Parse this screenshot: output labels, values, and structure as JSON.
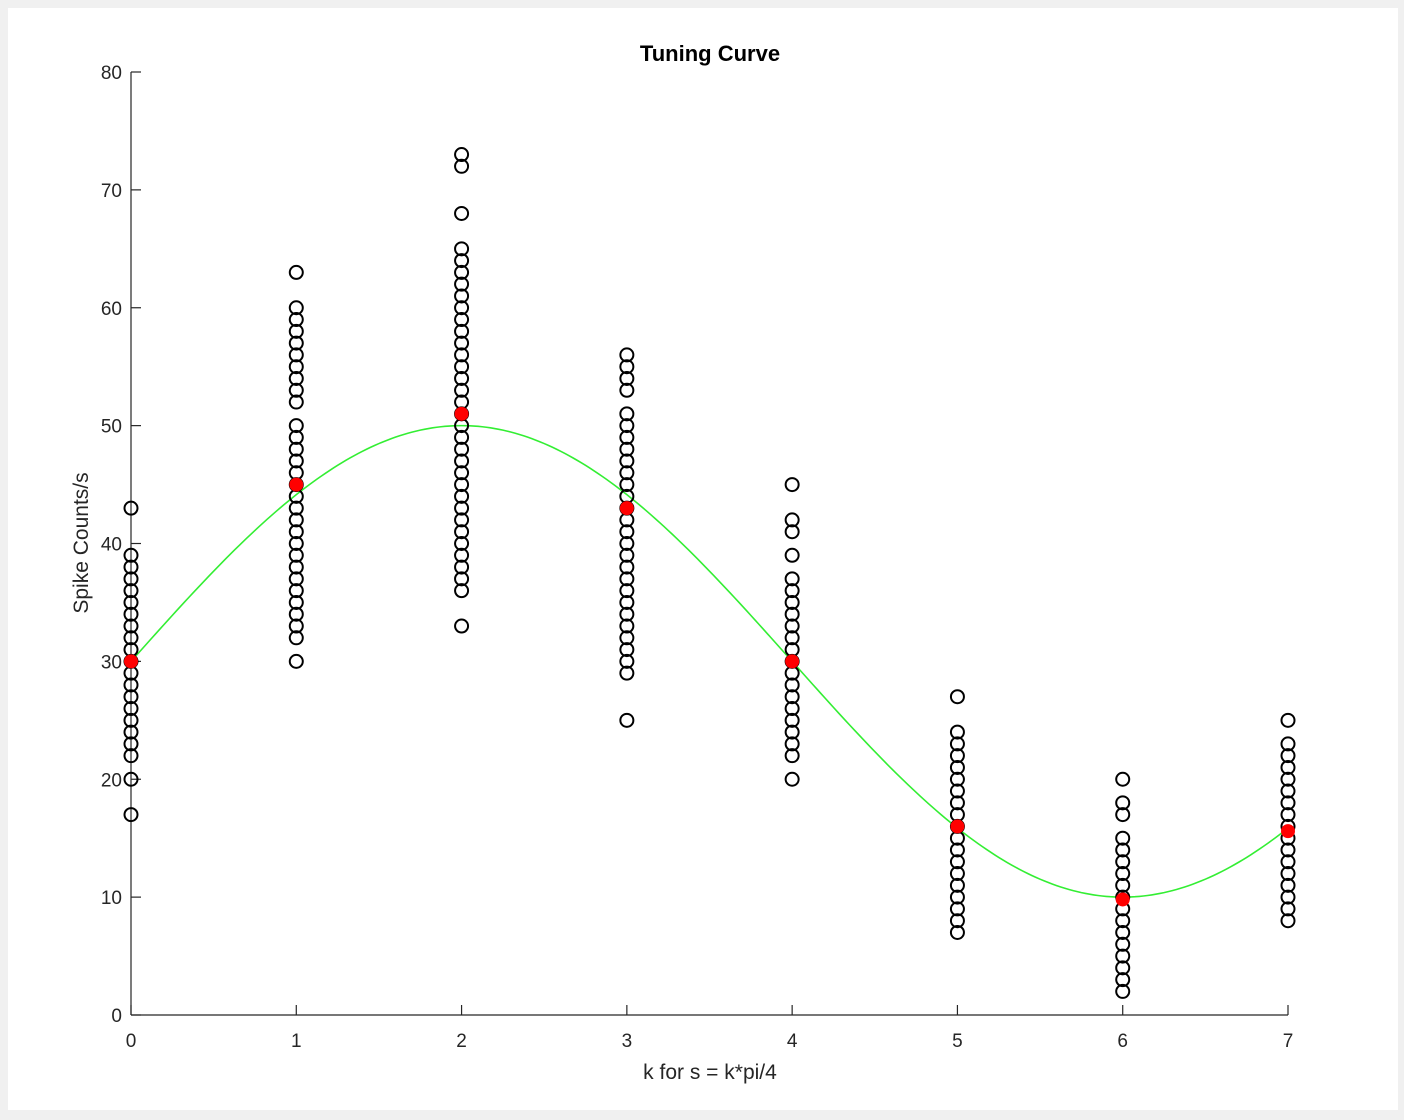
{
  "chart_data": {
    "type": "scatter",
    "title": "Tuning Curve",
    "xlabel": "k for s = k*pi/4",
    "ylabel": "Spike Counts/s",
    "xlim": [
      0,
      7
    ],
    "ylim": [
      0,
      80
    ],
    "xticks": [
      "0",
      "1",
      "2",
      "3",
      "4",
      "5",
      "6",
      "7"
    ],
    "yticks": [
      "0",
      "10",
      "20",
      "30",
      "40",
      "50",
      "60",
      "70",
      "80"
    ],
    "grid": false,
    "legend": "none",
    "colors": {
      "trials": "#000000",
      "means": "#ff0000",
      "fit": "#33ee33",
      "axes": "#262626"
    },
    "trials": [
      {
        "k": 0,
        "counts": [
          17,
          20,
          22,
          23,
          24,
          25,
          26,
          27,
          28,
          29,
          30,
          31,
          32,
          33,
          34,
          35,
          36,
          37,
          38,
          39,
          43
        ]
      },
      {
        "k": 1,
        "counts": [
          30,
          32,
          33,
          34,
          35,
          36,
          37,
          38,
          39,
          40,
          41,
          42,
          43,
          44,
          45,
          46,
          47,
          48,
          49,
          50,
          52,
          53,
          54,
          55,
          56,
          57,
          58,
          59,
          60,
          63
        ]
      },
      {
        "k": 2,
        "counts": [
          33,
          36,
          37,
          38,
          39,
          40,
          41,
          42,
          43,
          44,
          45,
          46,
          47,
          48,
          49,
          50,
          51,
          52,
          53,
          54,
          55,
          56,
          57,
          58,
          59,
          60,
          61,
          62,
          63,
          64,
          65,
          68,
          72,
          73
        ]
      },
      {
        "k": 3,
        "counts": [
          25,
          29,
          30,
          31,
          32,
          33,
          34,
          35,
          36,
          37,
          38,
          39,
          40,
          41,
          42,
          43,
          44,
          45,
          46,
          47,
          48,
          49,
          50,
          51,
          53,
          54,
          55,
          56
        ]
      },
      {
        "k": 4,
        "counts": [
          20,
          22,
          23,
          24,
          25,
          26,
          27,
          28,
          29,
          30,
          31,
          32,
          33,
          34,
          35,
          36,
          37,
          39,
          41,
          42,
          45
        ]
      },
      {
        "k": 5,
        "counts": [
          7,
          8,
          9,
          10,
          11,
          12,
          13,
          14,
          15,
          16,
          17,
          18,
          19,
          20,
          21,
          22,
          23,
          24,
          27
        ]
      },
      {
        "k": 6,
        "counts": [
          2,
          3,
          4,
          5,
          6,
          7,
          8,
          9,
          10,
          11,
          12,
          13,
          14,
          15,
          17,
          18,
          20
        ]
      },
      {
        "k": 7,
        "counts": [
          8,
          9,
          10,
          11,
          12,
          13,
          14,
          15,
          16,
          17,
          18,
          19,
          20,
          21,
          22,
          23,
          25
        ]
      }
    ],
    "means": [
      {
        "k": 0,
        "value": 30
      },
      {
        "k": 1,
        "value": 45
      },
      {
        "k": 2,
        "value": 51
      },
      {
        "k": 3,
        "value": 43
      },
      {
        "k": 4,
        "value": 30
      },
      {
        "k": 5,
        "value": 16
      },
      {
        "k": 6,
        "value": 9.8
      },
      {
        "k": 7,
        "value": 15.6
      }
    ],
    "fit": {
      "type": "cosine",
      "baseline": 30,
      "amplitude": 20,
      "preferred_k": 2
    }
  }
}
